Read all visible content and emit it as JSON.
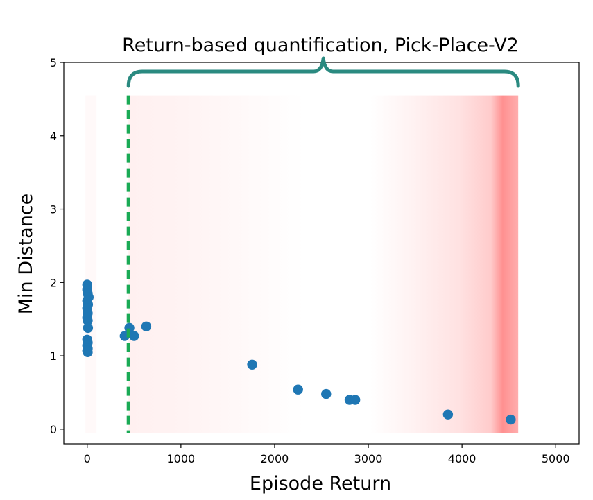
{
  "chart_data": {
    "type": "scatter",
    "title": "Return-based quantification, Pick-Place-V2",
    "xlabel": "Episode Return",
    "ylabel": "Min Distance",
    "xlim": [
      -250,
      5250
    ],
    "ylim": [
      -0.2,
      5.0
    ],
    "xticks": [
      0,
      1000,
      2000,
      3000,
      4000,
      5000
    ],
    "yticks": [
      0,
      1,
      2,
      3,
      4,
      5
    ],
    "xtick_labels": [
      "0",
      "1000",
      "2000",
      "3000",
      "4000",
      "5000"
    ],
    "ytick_labels": [
      "0",
      "1",
      "2",
      "3",
      "4",
      "5"
    ],
    "grid": false,
    "colors": {
      "point": "#1f77b4",
      "threshold_line": "#1aaa55",
      "brace": "#2a8a80",
      "shade": "#ff6b6b"
    },
    "threshold_x": 440,
    "brace_x_range": [
      440,
      4600
    ],
    "shade_x_range": [
      440,
      4600
    ],
    "shade_y_range": [
      -0.05,
      4.55
    ],
    "points": [
      {
        "x": 0,
        "y": 1.97
      },
      {
        "x": 0,
        "y": 1.9
      },
      {
        "x": 5,
        "y": 1.85
      },
      {
        "x": 15,
        "y": 1.8
      },
      {
        "x": 0,
        "y": 1.75
      },
      {
        "x": 8,
        "y": 1.7
      },
      {
        "x": 0,
        "y": 1.65
      },
      {
        "x": 5,
        "y": 1.58
      },
      {
        "x": 0,
        "y": 1.52
      },
      {
        "x": 5,
        "y": 1.48
      },
      {
        "x": 8,
        "y": 1.38
      },
      {
        "x": 0,
        "y": 1.22
      },
      {
        "x": 5,
        "y": 1.18
      },
      {
        "x": 0,
        "y": 1.14
      },
      {
        "x": 5,
        "y": 1.1
      },
      {
        "x": 0,
        "y": 1.07
      },
      {
        "x": 5,
        "y": 1.05
      },
      {
        "x": 400,
        "y": 1.27
      },
      {
        "x": 450,
        "y": 1.38
      },
      {
        "x": 500,
        "y": 1.27
      },
      {
        "x": 630,
        "y": 1.4
      },
      {
        "x": 1760,
        "y": 0.88
      },
      {
        "x": 2250,
        "y": 0.54
      },
      {
        "x": 2550,
        "y": 0.48
      },
      {
        "x": 2800,
        "y": 0.4
      },
      {
        "x": 2860,
        "y": 0.4
      },
      {
        "x": 3850,
        "y": 0.2
      },
      {
        "x": 4520,
        "y": 0.13
      }
    ]
  }
}
